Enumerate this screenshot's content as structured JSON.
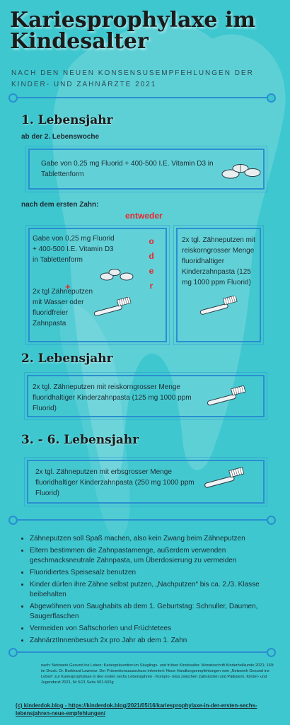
{
  "header": {
    "title": "Kariesprophylaxe im Kindesalter",
    "subtitle": "NACH DEN NEUEN KONSENSUSEMPFEHLUNGEN DER KINDER- UND ZAHNÄRZTE 2021"
  },
  "section1": {
    "heading": "1. Lebensjahr",
    "sub_from_week": "ab der 2. Lebenswoche",
    "box1_text": "Gabe von 0,25 mg Fluorid + 400-500 I.E. Vitamin D3 in Tablettenform",
    "sub_first_tooth": "nach dem ersten Zahn:",
    "either_label": "entweder",
    "or_letters": [
      "o",
      "d",
      "e",
      "r"
    ],
    "plus": "+",
    "left_box_text_a": "Gabe von 0,25 mg Fluorid + 400-500 I.E. Vitamin D3 in Tablettenform",
    "left_box_text_b": "2x tgl Zähneputzen mit Wasser oder fluoridfreier Zahnpasta",
    "right_box_text": "2x tgl. Zähneputzen mit reiskorngrosser Menge fluoridhaltiger Kinderzahnpasta (125 mg 1000 ppm Fluorid)"
  },
  "section2": {
    "heading": "2. Lebensjahr",
    "box_text": "2x tgl. Zähneputzen mit reiskorngrosser Menge fluoridhaltiger Kinderzahnpasta (125 mg 1000 ppm Fluorid)"
  },
  "section3": {
    "heading": "3. - 6. Lebensjahr",
    "box_text": "2x tgl. Zähneputzen mit erbsgrosser Menge fluoridhaltiger Kinderzahnpasta (250 mg 1000 ppm Fluorid)"
  },
  "tips": [
    "Zähneputzen soll Spaß machen, also kein Zwang beim Zähneputzen",
    "Eltern bestimmen die Zahnpastamenge, außerdem verwenden geschmacksneutrale Zahnpasta, um Überdosierung zu vermeiden",
    "Fluoridiertes Speisesalz benutzen",
    "Kinder dürfen ihre Zähne selbst putzen, „Nachputzen“ bis ca. 2./3. Klasse beibehalten",
    "Abgewöhnen von Saughabits ab dem 1. Geburtstag: Schnuller, Daumen, Saugerflaschen",
    "Vermeiden von Saftschorlen und Früchtetees",
    "ZahnärztInnenbesuch 2x pro Jahr ab dem 1. Zahn"
  ],
  "sources": "nach: Netzwerk Gesund ins Leben: Kariesprävention im Säuglings- und frühen Kindesalter. Monatsschrift Kinderheilkunde 2021; 169: im Druck. Dr. Burkhard Lawrenz: Der Präventionsausschuss informiert: Neue Handlungsempfehlungen vom „Netzwerk Gesund ins Leben“ zur Kariesprophylaxe in den ersten sechs Lebensjahren - Kompro- miss zwischen Zahnärzten und Pädiatern, Kinder- und Jugendarzt 2021, Nr 5/21 Seite 501-502g",
  "footer_link": "(c) kinderdok.blog - https://kinderdok.blog/2021/05/16/kariesprophylaxe-in-der-ersten-sechs-lebensjahren-neue-empfehlungen/",
  "colors": {
    "background": "#3ec7cf",
    "accent": "#2a8ed0",
    "alert": "#e8262b"
  },
  "icons": [
    "tooth-background-icon",
    "tablets-icon",
    "toothbrush-icon"
  ]
}
